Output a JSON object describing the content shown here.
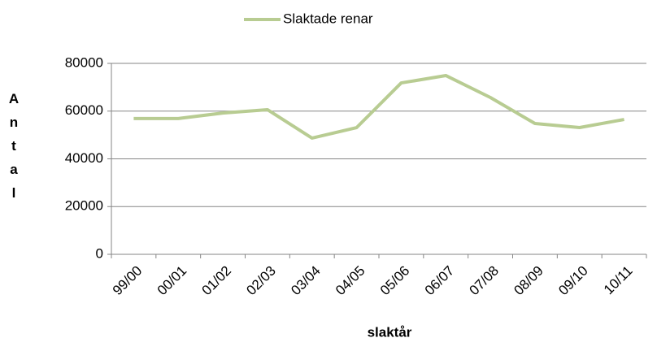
{
  "chart_data": {
    "type": "line",
    "categories": [
      "99/00",
      "00/01",
      "01/02",
      "02/03",
      "03/04",
      "04/05",
      "05/06",
      "06/07",
      "07/08",
      "08/09",
      "09/10",
      "10/11"
    ],
    "series": [
      {
        "name": "Slaktade renar",
        "color": "#b8cc92",
        "values": [
          56900,
          56900,
          59200,
          60600,
          48700,
          53100,
          71800,
          74900,
          65700,
          54800,
          53100,
          56500
        ]
      }
    ],
    "ylim": [
      0,
      80000
    ],
    "yticks": [
      0,
      20000,
      40000,
      60000,
      80000
    ],
    "grid": true,
    "x_label": "slaktår",
    "y_label": "Antal",
    "legend": "top"
  }
}
